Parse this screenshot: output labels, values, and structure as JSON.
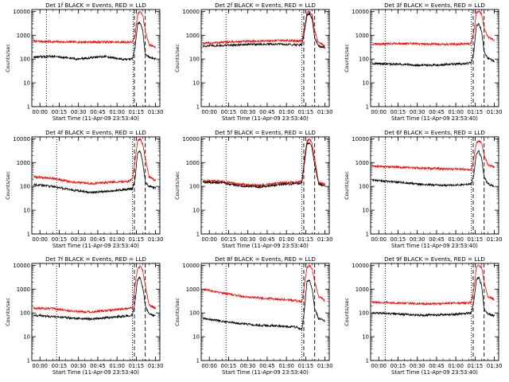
{
  "figure": {
    "colors": {
      "events": "#000000",
      "lld": "#ff0000",
      "axes": "#000000",
      "background": "#ffffff"
    },
    "ylabel": "Counts/sec",
    "xlabel": "Start Time (11-Apr-09 23:53:40)"
  },
  "chart_data": [
    {
      "type": "line",
      "title": "Det 1f BLACK = Events, RED = LLD",
      "xlabel": "Start Time (11-Apr-09 23:53:40)",
      "ylabel": "Counts/sec",
      "yscale": "log",
      "ylim": [
        1,
        12000
      ],
      "ytick_labels": [
        "1",
        "10",
        "100",
        "1000",
        "10000"
      ],
      "xlim": [
        "23:53:40",
        "01:33:20"
      ],
      "xtick_labels": [
        "00:00",
        "00:15",
        "00:30",
        "00:45",
        "01:00",
        "01:15",
        "01:30"
      ],
      "vlines": {
        "dotted": [
          "00:05",
          "01:12:30"
        ],
        "dashed": [
          "01:13:30",
          "01:22"
        ]
      },
      "series": [
        {
          "name": "LLD",
          "color": "red",
          "x": [
            "23:55",
            "00:10",
            "00:30",
            "00:50",
            "01:05",
            "01:12",
            "01:14",
            "01:16",
            "01:18",
            "01:20",
            "01:22",
            "01:25",
            "01:28",
            "01:30"
          ],
          "values": [
            560,
            530,
            520,
            520,
            510,
            520,
            900,
            8000,
            10000,
            7000,
            1500,
            400,
            350,
            300
          ]
        },
        {
          "name": "Events",
          "color": "black",
          "x": [
            "23:55",
            "00:10",
            "00:30",
            "00:50",
            "01:05",
            "01:12",
            "01:14",
            "01:16",
            "01:18",
            "01:20",
            "01:22",
            "01:25",
            "01:28",
            "01:30"
          ],
          "values": [
            120,
            130,
            100,
            130,
            95,
            100,
            300,
            3000,
            3500,
            1500,
            150,
            120,
            110,
            100
          ]
        }
      ]
    },
    {
      "type": "line",
      "title": "Det 2f BLACK = Events, RED = LLD",
      "xlabel": "Start Time (11-Apr-09 23:53:40)",
      "ylabel": "Counts/sec",
      "yscale": "log",
      "ylim": [
        1,
        12000
      ],
      "ytick_labels": [
        "1",
        "10",
        "100",
        "1000",
        "10000"
      ],
      "xlim": [
        "23:53:40",
        "01:33:20"
      ],
      "xtick_labels": [
        "00:00",
        "00:15",
        "00:30",
        "00:45",
        "01:00",
        "01:15",
        "01:30"
      ],
      "vlines": {
        "dotted": [
          "00:13",
          "01:12"
        ],
        "dashed": [
          "01:13:30",
          "01:22"
        ]
      },
      "series": [
        {
          "name": "LLD",
          "color": "red",
          "x": [
            "23:55",
            "00:15",
            "00:35",
            "00:55",
            "01:08",
            "01:12",
            "01:14",
            "01:16",
            "01:18",
            "01:20",
            "01:22",
            "01:25",
            "01:28",
            "01:30"
          ],
          "values": [
            450,
            520,
            560,
            600,
            580,
            600,
            2000,
            9000,
            10000,
            7000,
            1500,
            500,
            400,
            350
          ]
        },
        {
          "name": "Events",
          "color": "black",
          "x": [
            "23:55",
            "00:15",
            "00:35",
            "00:55",
            "01:08",
            "01:12",
            "01:14",
            "01:16",
            "01:18",
            "01:20",
            "01:22",
            "01:25",
            "01:28",
            "01:30"
          ],
          "values": [
            350,
            380,
            420,
            420,
            400,
            400,
            1500,
            7000,
            8000,
            5000,
            800,
            350,
            300,
            300
          ]
        }
      ]
    },
    {
      "type": "line",
      "title": "Det 3f BLACK = Events, RED = LLD",
      "xlabel": "Start Time (11-Apr-09 23:53:40)",
      "ylabel": "Counts/sec",
      "yscale": "log",
      "ylim": [
        1,
        12000
      ],
      "ytick_labels": [
        "1",
        "10",
        "100",
        "1000",
        "10000"
      ],
      "xlim": [
        "23:53:40",
        "01:33:20"
      ],
      "xtick_labels": [
        "00:00",
        "00:15",
        "00:30",
        "00:45",
        "01:00",
        "01:15",
        "01:30"
      ],
      "vlines": {
        "dotted": [
          "00:05",
          "01:12"
        ],
        "dashed": [
          "01:13:30",
          "01:22"
        ]
      },
      "series": [
        {
          "name": "LLD",
          "color": "red",
          "x": [
            "23:55",
            "00:15",
            "00:35",
            "00:55",
            "01:08",
            "01:12",
            "01:14",
            "01:16",
            "01:18",
            "01:20",
            "01:22",
            "01:25",
            "01:28",
            "01:30"
          ],
          "values": [
            420,
            450,
            430,
            420,
            430,
            450,
            1500,
            9000,
            10000,
            8000,
            2000,
            800,
            700,
            600
          ]
        },
        {
          "name": "Events",
          "color": "black",
          "x": [
            "23:55",
            "00:15",
            "00:35",
            "00:55",
            "01:08",
            "01:12",
            "01:14",
            "01:16",
            "01:18",
            "01:20",
            "01:22",
            "01:25",
            "01:28",
            "01:30"
          ],
          "values": [
            65,
            60,
            55,
            60,
            65,
            70,
            200,
            2500,
            3000,
            1500,
            200,
            110,
            90,
            80
          ]
        }
      ]
    },
    {
      "type": "line",
      "title": "Det 4f BLACK = Events, RED = LLD",
      "xlabel": "Start Time (11-Apr-09 23:53:40)",
      "ylabel": "Counts/sec",
      "yscale": "log",
      "ylim": [
        1,
        12000
      ],
      "ytick_labels": [
        "1",
        "10",
        "100",
        "1000",
        "10000"
      ],
      "xlim": [
        "23:53:40",
        "01:33:20"
      ],
      "xtick_labels": [
        "00:00",
        "00:15",
        "00:30",
        "00:45",
        "01:00",
        "01:15",
        "01:30"
      ],
      "vlines": {
        "dotted": [
          "00:13",
          "01:12"
        ],
        "dashed": [
          "01:13:30",
          "01:22"
        ]
      },
      "series": [
        {
          "name": "LLD",
          "color": "red",
          "x": [
            "23:55",
            "00:10",
            "00:25",
            "00:40",
            "00:55",
            "01:08",
            "01:12",
            "01:14",
            "01:16",
            "01:18",
            "01:20",
            "01:22",
            "01:25",
            "01:28",
            "01:30"
          ],
          "values": [
            250,
            220,
            150,
            130,
            150,
            160,
            200,
            1200,
            8000,
            10000,
            6000,
            1500,
            250,
            200,
            180
          ]
        },
        {
          "name": "Events",
          "color": "black",
          "x": [
            "23:55",
            "00:10",
            "00:25",
            "00:40",
            "00:55",
            "01:08",
            "01:12",
            "01:14",
            "01:16",
            "01:18",
            "01:20",
            "01:22",
            "01:25",
            "01:28",
            "01:30"
          ],
          "values": [
            120,
            100,
            70,
            55,
            65,
            75,
            80,
            200,
            2500,
            3000,
            1000,
            150,
            100,
            90,
            85
          ]
        }
      ]
    },
    {
      "type": "line",
      "title": "Det 5f BLACK = Events, RED = LLD",
      "xlabel": "Start Time (11-Apr-09 23:53:40)",
      "ylabel": "Counts/sec",
      "yscale": "log",
      "ylim": [
        1,
        12000
      ],
      "ytick_labels": [
        "1",
        "10",
        "100",
        "1000",
        "10000"
      ],
      "xlim": [
        "23:53:40",
        "01:33:20"
      ],
      "xtick_labels": [
        "00:00",
        "00:15",
        "00:30",
        "00:45",
        "01:00",
        "01:15",
        "01:30"
      ],
      "vlines": {
        "dotted": [
          "00:13",
          "01:12"
        ],
        "dashed": [
          "01:13:30",
          "01:22"
        ]
      },
      "series": [
        {
          "name": "LLD",
          "color": "red",
          "x": [
            "23:55",
            "00:10",
            "00:25",
            "00:40",
            "00:55",
            "01:08",
            "01:12",
            "01:14",
            "01:16",
            "01:18",
            "01:20",
            "01:22",
            "01:25",
            "01:28",
            "01:30"
          ],
          "values": [
            170,
            160,
            120,
            110,
            140,
            150,
            160,
            1500,
            8000,
            10000,
            6000,
            1500,
            150,
            130,
            120
          ]
        },
        {
          "name": "Events",
          "color": "black",
          "x": [
            "23:55",
            "00:10",
            "00:25",
            "00:40",
            "00:55",
            "01:08",
            "01:12",
            "01:14",
            "01:16",
            "01:18",
            "01:20",
            "01:22",
            "01:25",
            "01:28",
            "01:30"
          ],
          "values": [
            150,
            140,
            105,
            95,
            120,
            130,
            140,
            1000,
            6000,
            7000,
            4000,
            800,
            130,
            110,
            100
          ]
        }
      ]
    },
    {
      "type": "line",
      "title": "Det 6f BLACK = Events, RED = LLD",
      "xlabel": "Start Time (11-Apr-09 23:53:40)",
      "ylabel": "Counts/sec",
      "yscale": "log",
      "ylim": [
        1,
        12000
      ],
      "ytick_labels": [
        "1",
        "10",
        "100",
        "1000",
        "10000"
      ],
      "xlim": [
        "23:53:40",
        "01:33:20"
      ],
      "xtick_labels": [
        "00:00",
        "00:15",
        "00:30",
        "00:45",
        "01:00",
        "01:15",
        "01:30"
      ],
      "vlines": {
        "dotted": [
          "00:05",
          "01:12"
        ],
        "dashed": [
          "01:13:30",
          "01:22"
        ]
      },
      "series": [
        {
          "name": "LLD",
          "color": "red",
          "x": [
            "23:55",
            "00:15",
            "00:35",
            "00:55",
            "01:08",
            "01:12",
            "01:14",
            "01:16",
            "01:18",
            "01:20",
            "01:22",
            "01:25",
            "01:28",
            "01:30"
          ],
          "values": [
            700,
            640,
            580,
            540,
            520,
            500,
            1500,
            7000,
            8000,
            7000,
            2000,
            800,
            700,
            650
          ]
        },
        {
          "name": "Events",
          "color": "black",
          "x": [
            "23:55",
            "00:15",
            "00:35",
            "00:55",
            "01:08",
            "01:12",
            "01:14",
            "01:16",
            "01:18",
            "01:20",
            "01:22",
            "01:25",
            "01:28",
            "01:30"
          ],
          "values": [
            180,
            150,
            120,
            110,
            120,
            130,
            300,
            2500,
            3000,
            1500,
            250,
            130,
            110,
            100
          ]
        }
      ]
    },
    {
      "type": "line",
      "title": "Det 7f BLACK = Events, RED = LLD",
      "xlabel": "Start Time (11-Apr-09 23:53:40)",
      "ylabel": "Counts/sec",
      "yscale": "log",
      "ylim": [
        1,
        12000
      ],
      "ytick_labels": [
        "1",
        "10",
        "100",
        "1000",
        "10000"
      ],
      "xlim": [
        "23:53:40",
        "01:33:20"
      ],
      "xtick_labels": [
        "00:00",
        "00:15",
        "00:30",
        "00:45",
        "01:00",
        "01:15",
        "01:30"
      ],
      "vlines": {
        "dotted": [
          "00:13",
          "01:12"
        ],
        "dashed": [
          "01:13:30",
          "01:22"
        ]
      },
      "series": [
        {
          "name": "LLD",
          "color": "red",
          "x": [
            "23:55",
            "00:10",
            "00:25",
            "00:40",
            "00:55",
            "01:08",
            "01:12",
            "01:14",
            "01:16",
            "01:18",
            "01:20",
            "01:22",
            "01:25",
            "01:28",
            "01:30"
          ],
          "values": [
            160,
            150,
            120,
            110,
            130,
            150,
            170,
            1500,
            7000,
            9000,
            6000,
            1500,
            200,
            180,
            150
          ]
        },
        {
          "name": "Events",
          "color": "black",
          "x": [
            "23:55",
            "00:10",
            "00:25",
            "00:40",
            "00:55",
            "01:08",
            "01:12",
            "01:14",
            "01:16",
            "01:18",
            "01:20",
            "01:22",
            "01:25",
            "01:28",
            "01:30"
          ],
          "values": [
            80,
            70,
            60,
            55,
            65,
            75,
            80,
            300,
            2500,
            3000,
            1200,
            200,
            90,
            80,
            75
          ]
        }
      ]
    },
    {
      "type": "line",
      "title": "Det 8f BLACK = Events, RED = LLD",
      "xlabel": "Start Time (11-Apr-09 23:53:40)",
      "ylabel": "Counts/sec",
      "yscale": "log",
      "ylim": [
        1,
        12000
      ],
      "ytick_labels": [
        "1",
        "10",
        "100",
        "1000",
        "10000"
      ],
      "xlim": [
        "23:53:40",
        "01:33:20"
      ],
      "xtick_labels": [
        "00:00",
        "00:15",
        "00:30",
        "00:45",
        "01:00",
        "01:15",
        "01:30"
      ],
      "vlines": {
        "dotted": [
          "00:13",
          "01:12"
        ],
        "dashed": [
          "01:13:30",
          "01:22"
        ]
      },
      "series": [
        {
          "name": "LLD",
          "color": "red",
          "x": [
            "23:55",
            "00:10",
            "00:25",
            "00:40",
            "00:55",
            "01:08",
            "01:12",
            "01:14",
            "01:16",
            "01:18",
            "01:20",
            "01:22",
            "01:25",
            "01:28",
            "01:30"
          ],
          "values": [
            1000,
            700,
            500,
            420,
            380,
            320,
            300,
            1500,
            8000,
            10000,
            7000,
            2000,
            500,
            400,
            300
          ]
        },
        {
          "name": "Events",
          "color": "black",
          "x": [
            "23:55",
            "00:10",
            "00:25",
            "00:40",
            "00:55",
            "01:08",
            "01:12",
            "01:14",
            "01:16",
            "01:18",
            "01:20",
            "01:22",
            "01:25",
            "01:28",
            "01:30"
          ],
          "values": [
            60,
            45,
            35,
            30,
            28,
            25,
            20,
            150,
            2000,
            2500,
            1000,
            150,
            60,
            50,
            45
          ]
        }
      ]
    },
    {
      "type": "line",
      "title": "Det 9f BLACK = Events, RED = LLD",
      "xlabel": "Start Time (11-Apr-09 23:53:40)",
      "ylabel": "Counts/sec",
      "yscale": "log",
      "ylim": [
        1,
        12000
      ],
      "ytick_labels": [
        "1",
        "10",
        "100",
        "1000",
        "10000"
      ],
      "xlim": [
        "23:53:40",
        "01:33:20"
      ],
      "xtick_labels": [
        "00:00",
        "00:15",
        "00:30",
        "00:45",
        "01:00",
        "01:15",
        "01:30"
      ],
      "vlines": {
        "dotted": [
          "00:05",
          "01:12"
        ],
        "dashed": [
          "01:13:30",
          "01:22"
        ]
      },
      "series": [
        {
          "name": "LLD",
          "color": "red",
          "x": [
            "23:55",
            "00:15",
            "00:35",
            "00:55",
            "01:08",
            "01:12",
            "01:14",
            "01:16",
            "01:18",
            "01:20",
            "01:22",
            "01:25",
            "01:28",
            "01:30"
          ],
          "values": [
            280,
            260,
            240,
            250,
            260,
            270,
            1000,
            8000,
            10000,
            8000,
            2000,
            500,
            400,
            350
          ]
        },
        {
          "name": "Events",
          "color": "black",
          "x": [
            "23:55",
            "00:15",
            "00:35",
            "00:55",
            "01:08",
            "01:12",
            "01:14",
            "01:16",
            "01:18",
            "01:20",
            "01:22",
            "01:25",
            "01:28",
            "01:30"
          ],
          "values": [
            100,
            90,
            80,
            85,
            95,
            100,
            300,
            2500,
            3000,
            1500,
            150,
            90,
            80,
            75
          ]
        }
      ]
    }
  ]
}
